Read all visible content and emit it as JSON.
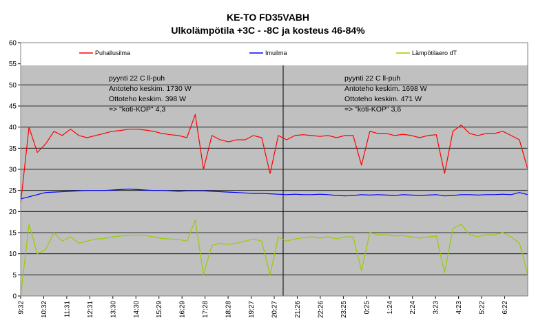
{
  "chart_data": {
    "type": "line",
    "title": "KE-TO FD35VABH",
    "subtitle": "Ulkolämpötila +3C - -8C ja kosteus 46-84%",
    "ylim": [
      0,
      60
    ],
    "yticks": [
      0,
      5,
      10,
      15,
      20,
      25,
      30,
      35,
      40,
      45,
      50,
      55,
      60
    ],
    "xticks": [
      "9:32",
      "10:32",
      "11:31",
      "12:31",
      "13:30",
      "14:30",
      "15:29",
      "16:29",
      "17:28",
      "18:28",
      "19:27",
      "20:27",
      "21:26",
      "22:26",
      "23:25",
      "0:25",
      "1:24",
      "2:24",
      "3:23",
      "4:23",
      "5:22",
      "6:22"
    ],
    "grid": true,
    "legend_position": "top",
    "plot_background": "#c0c0c0",
    "series": [
      {
        "name": "Puhallusilma",
        "color": "#ff0000",
        "values": [
          22,
          40,
          34,
          36,
          39,
          38,
          39.5,
          38,
          37.5,
          38,
          38.5,
          39,
          39.2,
          39.5,
          39.5,
          39.3,
          39,
          38.5,
          38.2,
          38,
          37.5,
          43,
          30,
          38,
          37,
          36.5,
          37,
          37,
          38,
          37.5,
          29,
          38,
          37,
          38,
          38.2,
          38,
          37.8,
          38,
          37.5,
          38,
          38,
          31,
          39,
          38.5,
          38.5,
          38,
          38.3,
          38,
          37.5,
          38,
          38.2,
          29,
          39,
          40.5,
          38.5,
          38,
          38.5,
          38.5,
          39,
          38,
          37,
          30
        ]
      },
      {
        "name": "Imuilma",
        "color": "#0000ff",
        "values": [
          23,
          23.5,
          24,
          24.5,
          24.6,
          24.7,
          24.8,
          24.9,
          25,
          25,
          25,
          25.1,
          25.2,
          25.3,
          25.2,
          25.1,
          25,
          25,
          24.9,
          24.8,
          24.9,
          24.9,
          24.9,
          24.8,
          24.7,
          24.6,
          24.5,
          24.4,
          24.3,
          24.3,
          24.2,
          24.1,
          24,
          24.1,
          24,
          24,
          24.1,
          24,
          23.8,
          23.7,
          23.8,
          24,
          23.9,
          24,
          23.9,
          23.8,
          24,
          23.9,
          23.8,
          23.9,
          24,
          23.7,
          23.8,
          24,
          24,
          23.9,
          24,
          24,
          24.1,
          24,
          24.5,
          24
        ]
      },
      {
        "name": "Lämpötilaero dT",
        "color": "#99cc00",
        "values": [
          0,
          17,
          10,
          11,
          15,
          13,
          14,
          12.5,
          13,
          13.5,
          13.6,
          14,
          14.2,
          14.3,
          14.4,
          14.3,
          14,
          13.6,
          13.5,
          13.4,
          13,
          18,
          5,
          12,
          12.5,
          12.2,
          12.5,
          13,
          13.5,
          13,
          5,
          14,
          13,
          13.5,
          13.8,
          14,
          13.7,
          14,
          13.5,
          14,
          14,
          6,
          15,
          14.5,
          14.5,
          14.2,
          14.3,
          14,
          13.7,
          14,
          14.2,
          5.5,
          16,
          17,
          14.5,
          14,
          14.5,
          14.5,
          15,
          14,
          12.5,
          5
        ]
      }
    ],
    "annotations": [
      [
        "pyynti 22 C ll-puh",
        "Antoteho keskim. 1730 W",
        "Ottoteho keskim. 398 W",
        "=> \"koti-KOP\" 4,3"
      ],
      [
        "pyynti 22 C ll-puh",
        "Antoteho keskim. 1698 W",
        "Ottoteho keskim. 471 W",
        "=> \"koti-KOP\" 3,6"
      ]
    ]
  }
}
